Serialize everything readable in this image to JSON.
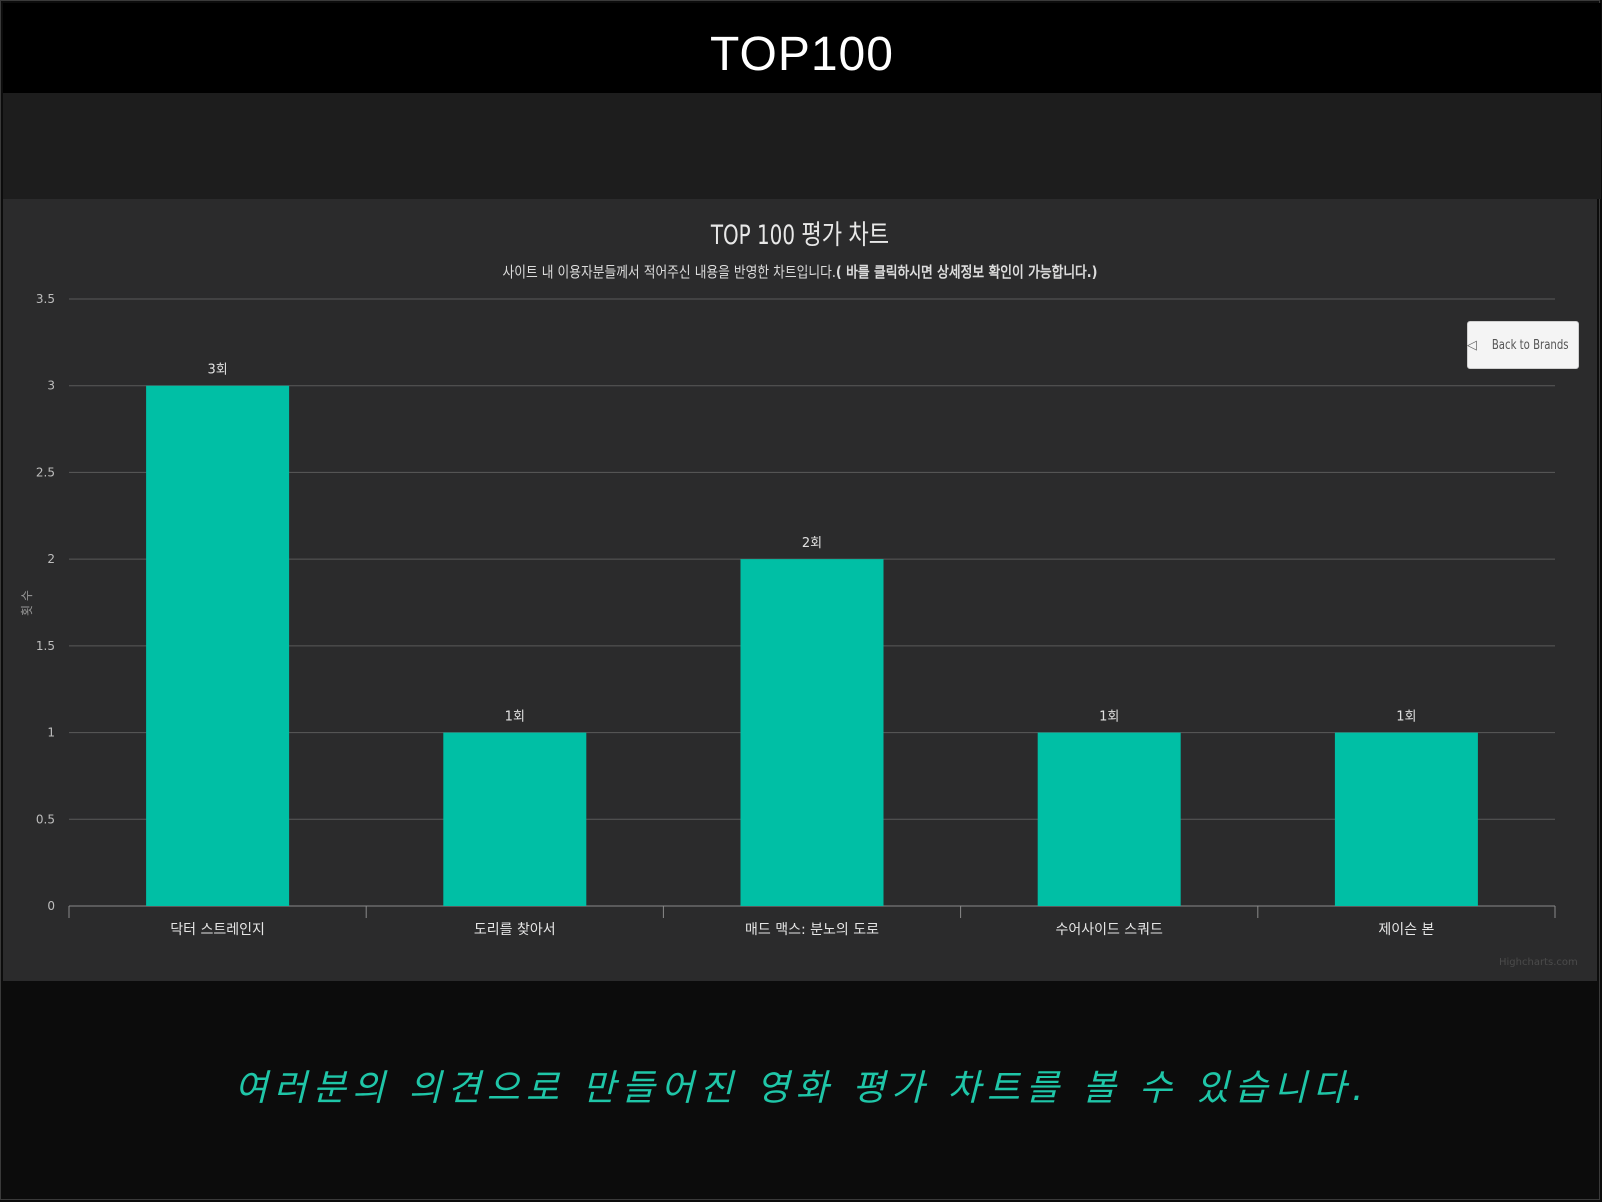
{
  "header": {
    "app_title": "TOP100"
  },
  "back_button": {
    "label": "Back to Brands",
    "icon": "triangle-left-icon"
  },
  "chart_data": {
    "type": "bar",
    "title": "TOP 100 평가 차트",
    "subtitle_plain": "사이트 내 이용자분들께서 적어주신 내용을 반영한 차트입니다.",
    "subtitle_bold": "( 바를 클릭하시면 상세정보 확인이 가능합니다.)",
    "ylabel": "횟 수",
    "xlabel": "",
    "ylim": [
      0,
      3.5
    ],
    "yticks": [
      "0",
      "0.5",
      "1",
      "1.5",
      "2",
      "2.5",
      "3",
      "3.5"
    ],
    "categories": [
      "닥터 스트레인지",
      "도리를 찾아서",
      "매드 맥스: 분노의 도로",
      "수어사이드 스쿼드",
      "제이슨 본"
    ],
    "values": [
      3,
      1,
      2,
      1,
      1
    ],
    "data_labels": [
      "3회",
      "1회",
      "2회",
      "1회",
      "1회"
    ],
    "bar_color": "#00bfa5",
    "grid": true,
    "credits": "Highcharts.com"
  },
  "caption": {
    "text": "여러분의 의견으로 만들어진 영화 평가 차트를 볼 수 있습니다."
  },
  "colors": {
    "accent": "#1fc6a8",
    "panel": "#2b2b2c",
    "grid": "#5a5a5a"
  }
}
